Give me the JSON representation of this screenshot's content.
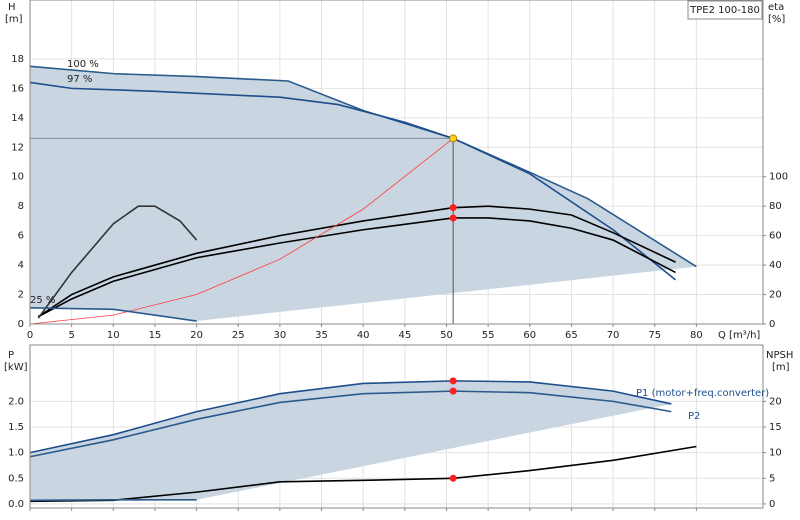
{
  "chart_data": [
    {
      "type": "line",
      "title": "TPE2 100-180",
      "y_label": "H",
      "y_unit": "[m]",
      "y2_label": "eta",
      "y2_unit": "[%]",
      "x_label": "Q [m³/h]",
      "xlim": [
        0,
        88
      ],
      "ylim": [
        0,
        22
      ],
      "y2lim": [
        0,
        220
      ],
      "xticks": [
        0,
        5,
        10,
        15,
        20,
        25,
        30,
        35,
        40,
        45,
        50,
        55,
        60,
        65,
        70,
        75,
        80
      ],
      "yticks": [
        0,
        2,
        4,
        6,
        8,
        10,
        12,
        14,
        16,
        18
      ],
      "y2ticks": [
        0,
        20,
        40,
        60,
        80,
        100
      ],
      "grid": true,
      "area_color": "#c9d6e2",
      "series": [
        {
          "name": "100 %",
          "color": "#2a5a8c",
          "x": [
            0,
            10,
            20,
            31,
            40,
            50.8,
            60,
            67,
            80
          ],
          "values": [
            17.5,
            17,
            16.8,
            16.5,
            14.5,
            12.6,
            10.3,
            8.5,
            3.9
          ]
        },
        {
          "name": "97 %",
          "color": "#1f4e8c",
          "x": [
            0,
            5,
            15,
            30,
            37,
            45,
            50.8,
            60,
            70,
            77.5
          ],
          "values": [
            16.4,
            16,
            15.8,
            15.4,
            14.9,
            13.7,
            12.6,
            10.2,
            6.4,
            3
          ]
        },
        {
          "color": "#000000",
          "axis": "y2",
          "x": [
            1,
            5,
            10,
            20,
            30,
            40,
            50.8,
            55,
            60,
            65,
            70,
            77.5
          ],
          "values": [
            5,
            20,
            32,
            48,
            60,
            70,
            79,
            80,
            78,
            74,
            62,
            42
          ]
        },
        {
          "color": "#000000",
          "axis": "y2",
          "x": [
            1,
            5,
            10,
            20,
            30,
            40,
            50.8,
            55,
            60,
            65,
            70,
            77.5
          ],
          "values": [
            5,
            17,
            29,
            45,
            55,
            64,
            72,
            72,
            70,
            65,
            57,
            35
          ]
        },
        {
          "color": "#333333",
          "axis": "y2",
          "x": [
            1,
            5,
            10,
            13,
            15,
            18,
            20
          ],
          "values": [
            4,
            35,
            68,
            80,
            80,
            70,
            57
          ]
        },
        {
          "color": "#ff3b3b",
          "x": [
            0,
            10,
            20,
            30,
            40,
            50.8
          ],
          "values": [
            0,
            0.6,
            2.0,
            4.4,
            7.8,
            12.6
          ]
        },
        {
          "name": "25 %",
          "color": "#2a5a8c",
          "x": [
            0,
            10,
            20
          ],
          "values": [
            1.1,
            1.0,
            0.2
          ]
        }
      ],
      "points": [
        {
          "x": 50.8,
          "y": 12.6,
          "color": "#ffd21f"
        },
        {
          "x": 50.8,
          "y": 79,
          "axis": "y2",
          "color": "#ff2020"
        },
        {
          "x": 50.8,
          "y": 72,
          "axis": "y2",
          "color": "#ff2020"
        }
      ]
    },
    {
      "type": "line",
      "y_label": "P",
      "y_unit": "[kW]",
      "y2_label": "NPSH",
      "y2_unit": "[m]",
      "xlim": [
        0,
        88
      ],
      "ylim": [
        -0.08,
        3.1
      ],
      "y2lim": [
        -0.8,
        31
      ],
      "xticks": [
        0,
        5,
        10,
        15,
        20,
        25,
        30,
        35,
        40,
        45,
        50,
        55,
        60,
        65,
        70,
        75,
        80
      ],
      "yticks": [
        {
          "value": 0,
          "label": "0.0"
        },
        0.5,
        {
          "value": 1,
          "label": "1.0"
        },
        1.5,
        {
          "value": 2,
          "label": "2.0"
        }
      ],
      "y2ticks": [
        0,
        5,
        10,
        15,
        20
      ],
      "grid": true,
      "area_color": "#c9d6e2",
      "series": [
        {
          "name": "P1 (motor+freq.converter)",
          "color": "#1f4e8c",
          "x": [
            0,
            10,
            20,
            30,
            40,
            50.8,
            60,
            70,
            77
          ],
          "values": [
            1.0,
            1.35,
            1.8,
            2.15,
            2.35,
            2.4,
            2.38,
            2.2,
            1.95
          ]
        },
        {
          "name": "P2",
          "color": "#2a5a8c",
          "x": [
            0,
            10,
            20,
            30,
            40,
            50.8,
            60,
            70,
            77
          ],
          "values": [
            0.92,
            1.25,
            1.65,
            1.98,
            2.15,
            2.2,
            2.17,
            2.0,
            1.8
          ]
        },
        {
          "color": "#000000",
          "axis": "y2",
          "x": [
            0,
            10,
            20,
            30,
            40,
            50.8,
            60,
            70,
            80
          ],
          "values": [
            0.5,
            0.7,
            2.3,
            4.3,
            4.6,
            5.0,
            6.5,
            8.5,
            11.2
          ]
        },
        {
          "color": "#2a5a8c",
          "x": [
            0,
            10,
            20
          ],
          "values": [
            0.07,
            0.08,
            0.08
          ]
        }
      ],
      "points": [
        {
          "x": 50.8,
          "y": 2.4,
          "color": "#ff2020"
        },
        {
          "x": 50.8,
          "y": 2.2,
          "color": "#ff2020"
        },
        {
          "x": 50.8,
          "y": 5.0,
          "axis": "y2",
          "color": "#ff2020"
        }
      ]
    }
  ]
}
